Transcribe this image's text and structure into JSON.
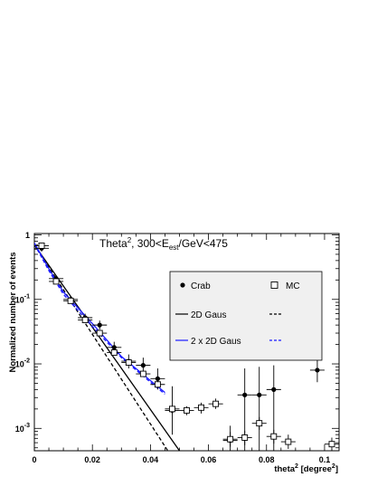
{
  "chart_data": {
    "type": "scatter",
    "title": {
      "main": "Theta",
      "sup": "2",
      "mid": ", 300<E",
      "sub": "est",
      "tail": "/GeV<475"
    },
    "xlabel": {
      "main": "theta",
      "sup1": "2",
      "mid": " [degree",
      "sup2": "2",
      "tail": "]"
    },
    "ylabel": "Normalized number of events",
    "xlim": [
      0,
      0.105
    ],
    "ylim": [
      0.00045,
      1.05
    ],
    "yscale": "log",
    "grid": false,
    "legend_position": "center-right",
    "x_ticks": [
      {
        "value": 0,
        "label": "0"
      },
      {
        "value": 0.02,
        "label": "0.02"
      },
      {
        "value": 0.04,
        "label": "0.04"
      },
      {
        "value": 0.06,
        "label": "0.06"
      },
      {
        "value": 0.08,
        "label": "0.08"
      },
      {
        "value": 0.1,
        "label": "0.1"
      }
    ],
    "y_ticks": [
      {
        "value": 1,
        "base": "1",
        "exp": ""
      },
      {
        "value": 0.1,
        "base": "10",
        "exp": "-1"
      },
      {
        "value": 0.01,
        "base": "10",
        "exp": "-2"
      },
      {
        "value": 0.001,
        "base": "10",
        "exp": "-3"
      }
    ],
    "series": [
      {
        "name": "Crab",
        "marker": "filled-circle",
        "color": "#000000",
        "points": [
          {
            "x": 0.0025,
            "y": 0.62,
            "ylo": 0.55,
            "yhi": 0.7
          },
          {
            "x": 0.0075,
            "y": 0.21,
            "ylo": 0.185,
            "yhi": 0.235
          },
          {
            "x": 0.0125,
            "y": 0.1,
            "ylo": 0.088,
            "yhi": 0.113
          },
          {
            "x": 0.0175,
            "y": 0.052,
            "ylo": 0.045,
            "yhi": 0.06
          },
          {
            "x": 0.0225,
            "y": 0.04,
            "ylo": 0.034,
            "yhi": 0.047
          },
          {
            "x": 0.0275,
            "y": 0.018,
            "ylo": 0.0145,
            "yhi": 0.022
          },
          {
            "x": 0.0325,
            "y": 0.011,
            "ylo": 0.0085,
            "yhi": 0.014
          },
          {
            "x": 0.0375,
            "y": 0.0095,
            "ylo": 0.0072,
            "yhi": 0.0125
          },
          {
            "x": 0.0425,
            "y": 0.0059,
            "ylo": 0.004,
            "yhi": 0.0085
          },
          {
            "x": 0.0475,
            "y": 0.0019,
            "ylo": 0.0008,
            "yhi": 0.0045
          },
          {
            "x": 0.0675,
            "y": 0.00065,
            "ylo": 0.00045,
            "yhi": 0.0011
          },
          {
            "x": 0.0725,
            "y": 0.0033,
            "ylo": 0.00045,
            "yhi": 0.0085
          },
          {
            "x": 0.0775,
            "y": 0.0033,
            "ylo": 0.00045,
            "yhi": 0.009
          },
          {
            "x": 0.0825,
            "y": 0.004,
            "ylo": 0.00045,
            "yhi": 0.0095
          },
          {
            "x": 0.0975,
            "y": 0.008,
            "ylo": 0.0052,
            "yhi": 0.012
          }
        ]
      },
      {
        "name": "MC",
        "marker": "open-square",
        "color": "#000000",
        "points": [
          {
            "x": 0.0025,
            "y": 0.68,
            "ylo": 0.66,
            "yhi": 0.7
          },
          {
            "x": 0.0075,
            "y": 0.19,
            "ylo": 0.18,
            "yhi": 0.2
          },
          {
            "x": 0.0125,
            "y": 0.095,
            "ylo": 0.09,
            "yhi": 0.1
          },
          {
            "x": 0.0175,
            "y": 0.048,
            "ylo": 0.045,
            "yhi": 0.051
          },
          {
            "x": 0.0225,
            "y": 0.03,
            "ylo": 0.028,
            "yhi": 0.032
          },
          {
            "x": 0.0275,
            "y": 0.015,
            "ylo": 0.014,
            "yhi": 0.016
          },
          {
            "x": 0.0325,
            "y": 0.0105,
            "ylo": 0.0098,
            "yhi": 0.0112
          },
          {
            "x": 0.0375,
            "y": 0.007,
            "ylo": 0.0064,
            "yhi": 0.0076
          },
          {
            "x": 0.0425,
            "y": 0.0048,
            "ylo": 0.0043,
            "yhi": 0.0053
          },
          {
            "x": 0.0475,
            "y": 0.002,
            "ylo": 0.0017,
            "yhi": 0.0023
          },
          {
            "x": 0.0525,
            "y": 0.0019,
            "ylo": 0.0016,
            "yhi": 0.0022
          },
          {
            "x": 0.0575,
            "y": 0.0021,
            "ylo": 0.0017,
            "yhi": 0.0025
          },
          {
            "x": 0.0625,
            "y": 0.0024,
            "ylo": 0.002,
            "yhi": 0.0029
          },
          {
            "x": 0.0675,
            "y": 0.00068,
            "ylo": 0.00052,
            "yhi": 0.00088
          },
          {
            "x": 0.0725,
            "y": 0.00072,
            "ylo": 0.00055,
            "yhi": 0.00092
          },
          {
            "x": 0.0775,
            "y": 0.0012,
            "ylo": 0.00095,
            "yhi": 0.0015
          },
          {
            "x": 0.0825,
            "y": 0.00075,
            "ylo": 0.00058,
            "yhi": 0.00095
          },
          {
            "x": 0.0875,
            "y": 0.00062,
            "ylo": 0.00048,
            "yhi": 0.0008
          },
          {
            "x": 0.1025,
            "y": 0.00057,
            "ylo": 0.00045,
            "yhi": 0.00072
          }
        ]
      }
    ],
    "fits": [
      {
        "name": "2D Gaus",
        "data": "Crab",
        "color": "#000000",
        "style": "solid",
        "x": [
          0.0,
          0.05
        ],
        "y": [
          0.7,
          0.00045
        ]
      },
      {
        "name": "2D Gaus",
        "data": "MC",
        "color": "#000000",
        "style": "dashed",
        "x": [
          0.0,
          0.046
        ],
        "y": [
          0.7,
          0.00045
        ]
      },
      {
        "name": "2 x 2D Gaus",
        "data": "Crab",
        "color": "#1a1aff",
        "style": "solid",
        "x": [
          0.0,
          0.005,
          0.01,
          0.02,
          0.03,
          0.04,
          0.045
        ],
        "y": [
          0.75,
          0.3,
          0.13,
          0.042,
          0.013,
          0.0055,
          0.0036
        ]
      },
      {
        "name": "2 x 2D Gaus",
        "data": "MC",
        "color": "#1a1aff",
        "style": "dashed",
        "x": [
          0.0,
          0.005,
          0.01,
          0.02,
          0.03,
          0.04,
          0.045
        ],
        "y": [
          0.72,
          0.28,
          0.12,
          0.038,
          0.0125,
          0.0052,
          0.0034
        ]
      }
    ],
    "legend": {
      "crab_label": "Crab",
      "mc_label": "MC",
      "gaus_label": "2D Gaus",
      "double_gaus_label": "2 x 2D Gaus",
      "background": "#f0f0f0"
    }
  }
}
